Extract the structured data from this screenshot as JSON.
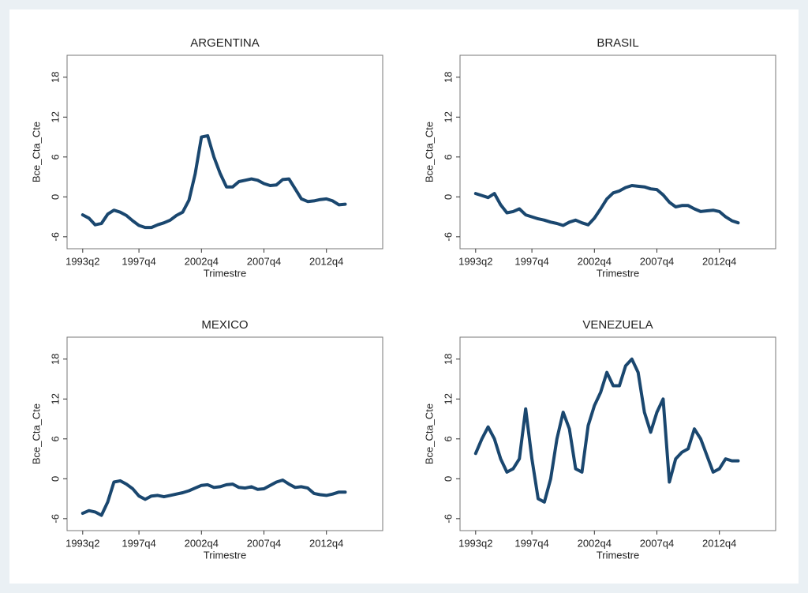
{
  "chart_data": [
    {
      "type": "line",
      "title": "ARGENTINA",
      "xlabel": "Trimestre",
      "ylabel": "Bce_Cta_Cte",
      "color": "#1a476f",
      "x": [
        133,
        135,
        137,
        139,
        141,
        143,
        145,
        147,
        149,
        151,
        153,
        155,
        157,
        159,
        161,
        163,
        165,
        167,
        169,
        171,
        173,
        175,
        177,
        179,
        181,
        183,
        185,
        187,
        189,
        191,
        193,
        195,
        197,
        199,
        201,
        203,
        205,
        207,
        209,
        211,
        213,
        215,
        217
      ],
      "values": [
        -2.7,
        -3.2,
        -4.2,
        -4.0,
        -2.6,
        -2.0,
        -2.3,
        -2.8,
        -3.6,
        -4.3,
        -4.6,
        -4.6,
        -4.2,
        -3.9,
        -3.5,
        -2.8,
        -2.3,
        -0.5,
        3.5,
        9.0,
        9.2,
        6.0,
        3.5,
        1.5,
        1.5,
        2.3,
        2.5,
        2.7,
        2.5,
        2.0,
        1.7,
        1.8,
        2.6,
        2.7,
        1.2,
        -0.3,
        -0.7,
        -0.6,
        -0.4,
        -0.3,
        -0.6,
        -1.2,
        -1.1
      ],
      "xlim": [
        128,
        229
      ],
      "ylim": [
        -7.8,
        21.3
      ],
      "xticks": [
        {
          "value": 133,
          "label": "1993q2"
        },
        {
          "value": 151,
          "label": "1997q4"
        },
        {
          "value": 171,
          "label": "2002q4"
        },
        {
          "value": 191,
          "label": "2007q4"
        },
        {
          "value": 211,
          "label": "2012q4"
        }
      ],
      "yticks": [
        -6,
        0,
        6,
        12,
        18
      ]
    },
    {
      "type": "line",
      "title": "BRASIL",
      "xlabel": "Trimestre",
      "ylabel": "Bce_Cta_Cte",
      "color": "#1a476f",
      "x": [
        133,
        135,
        137,
        139,
        141,
        143,
        145,
        147,
        149,
        151,
        153,
        155,
        157,
        159,
        161,
        163,
        165,
        167,
        169,
        171,
        173,
        175,
        177,
        179,
        181,
        183,
        185,
        187,
        189,
        191,
        193,
        195,
        197,
        199,
        201,
        203,
        205,
        207,
        209,
        211,
        213,
        215,
        217
      ],
      "values": [
        0.5,
        0.2,
        -0.1,
        0.5,
        -1.2,
        -2.4,
        -2.2,
        -1.8,
        -2.7,
        -3.0,
        -3.3,
        -3.5,
        -3.8,
        -4.0,
        -4.3,
        -3.8,
        -3.5,
        -3.9,
        -4.2,
        -3.2,
        -1.8,
        -0.3,
        0.6,
        0.9,
        1.4,
        1.7,
        1.6,
        1.5,
        1.2,
        1.1,
        0.3,
        -0.8,
        -1.5,
        -1.3,
        -1.3,
        -1.8,
        -2.2,
        -2.1,
        -2.0,
        -2.2,
        -3.0,
        -3.6,
        -3.9
      ],
      "xlim": [
        128,
        229
      ],
      "ylim": [
        -7.8,
        21.3
      ],
      "xticks": [
        {
          "value": 133,
          "label": "1993q2"
        },
        {
          "value": 151,
          "label": "1997q4"
        },
        {
          "value": 171,
          "label": "2002q4"
        },
        {
          "value": 191,
          "label": "2007q4"
        },
        {
          "value": 211,
          "label": "2012q4"
        }
      ],
      "yticks": [
        -6,
        0,
        6,
        12,
        18
      ]
    },
    {
      "type": "line",
      "title": "MEXICO",
      "xlabel": "Trimestre",
      "ylabel": "Bce_Cta_Cte",
      "color": "#1a476f",
      "x": [
        133,
        135,
        137,
        139,
        141,
        143,
        145,
        147,
        149,
        151,
        153,
        155,
        157,
        159,
        161,
        163,
        165,
        167,
        169,
        171,
        173,
        175,
        177,
        179,
        181,
        183,
        185,
        187,
        189,
        191,
        193,
        195,
        197,
        199,
        201,
        203,
        205,
        207,
        209,
        211,
        213,
        215,
        217
      ],
      "values": [
        -5.2,
        -4.8,
        -5.0,
        -5.5,
        -3.5,
        -0.5,
        -0.3,
        -0.8,
        -1.5,
        -2.6,
        -3.1,
        -2.6,
        -2.5,
        -2.7,
        -2.5,
        -2.3,
        -2.1,
        -1.8,
        -1.4,
        -1.0,
        -0.9,
        -1.3,
        -1.2,
        -0.9,
        -0.8,
        -1.3,
        -1.4,
        -1.2,
        -1.6,
        -1.5,
        -1.0,
        -0.5,
        -0.2,
        -0.8,
        -1.3,
        -1.2,
        -1.4,
        -2.2,
        -2.4,
        -2.5,
        -2.3,
        -2.0,
        -2.0
      ],
      "xlim": [
        128,
        229
      ],
      "ylim": [
        -7.8,
        21.3
      ],
      "xticks": [
        {
          "value": 133,
          "label": "1993q2"
        },
        {
          "value": 151,
          "label": "1997q4"
        },
        {
          "value": 171,
          "label": "2002q4"
        },
        {
          "value": 191,
          "label": "2007q4"
        },
        {
          "value": 211,
          "label": "2012q4"
        }
      ],
      "yticks": [
        -6,
        0,
        6,
        12,
        18
      ]
    },
    {
      "type": "line",
      "title": "VENEZUELA",
      "xlabel": "Trimestre",
      "ylabel": "Bce_Cta_Cte",
      "color": "#1a476f",
      "x": [
        133,
        135,
        137,
        139,
        141,
        143,
        145,
        147,
        149,
        151,
        153,
        155,
        157,
        159,
        161,
        163,
        165,
        167,
        169,
        171,
        173,
        175,
        177,
        179,
        181,
        183,
        185,
        187,
        189,
        191,
        193,
        195,
        197,
        199,
        201,
        203,
        205,
        207,
        209,
        211,
        213,
        215,
        217
      ],
      "values": [
        3.8,
        6,
        7.8,
        6,
        3,
        1,
        1.5,
        3,
        10.5,
        3,
        -3,
        -3.5,
        0,
        6,
        10,
        7.5,
        1.5,
        1,
        8,
        11,
        13,
        16,
        14,
        14,
        17,
        18,
        16,
        10,
        7,
        10,
        12,
        -0.5,
        3,
        4,
        4.5,
        7.5,
        6,
        3.5,
        1,
        1.5,
        3,
        2.7,
        2.7
      ],
      "xlim": [
        128,
        229
      ],
      "ylim": [
        -7.8,
        21.3
      ],
      "xticks": [
        {
          "value": 133,
          "label": "1993q2"
        },
        {
          "value": 151,
          "label": "1997q4"
        },
        {
          "value": 171,
          "label": "2002q4"
        },
        {
          "value": 191,
          "label": "2007q4"
        },
        {
          "value": 211,
          "label": "2012q4"
        }
      ],
      "yticks": [
        -6,
        0,
        6,
        12,
        18
      ]
    }
  ]
}
